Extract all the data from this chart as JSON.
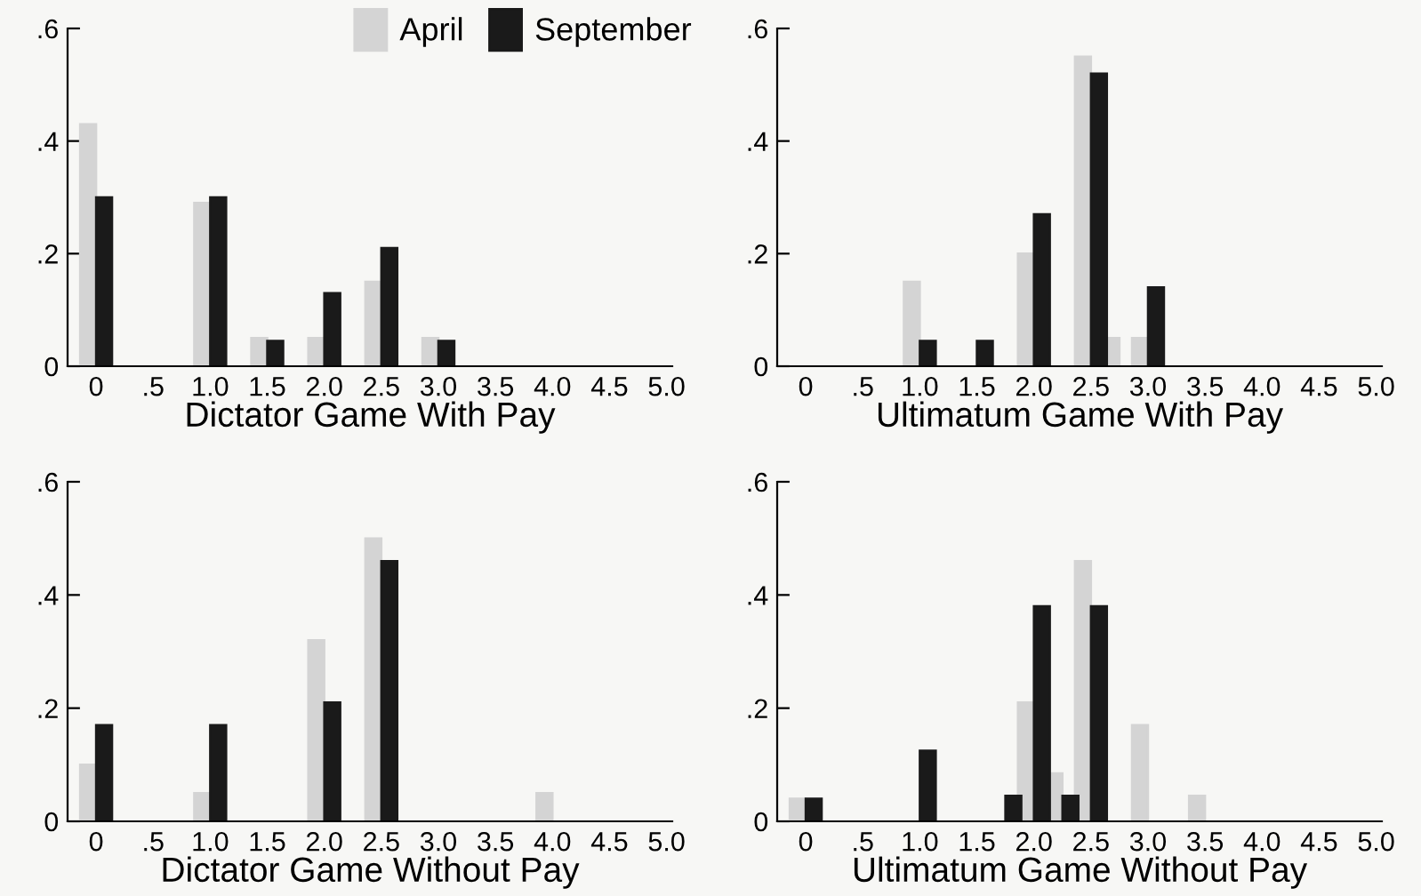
{
  "chart_data": [
    {
      "type": "bar",
      "xlabel": "Dictator Game With Pay",
      "legend": "top right",
      "xlim": [
        -0.25,
        5.05
      ],
      "ylim": [
        0,
        0.6
      ],
      "xticks": [
        0,
        {
          "value": 0.5,
          "label": ".5"
        },
        {
          "value": 1,
          "label": "1.0"
        },
        1.5,
        {
          "value": 2,
          "label": "2.0"
        },
        2.5,
        {
          "value": 3,
          "label": "3.0"
        },
        3.5,
        {
          "value": 4,
          "label": "4.0"
        },
        4.5,
        {
          "value": 5,
          "label": "5.0"
        }
      ],
      "yticks": [
        0,
        {
          "value": 0.2,
          "label": ".2"
        },
        {
          "value": 0.4,
          "label": ".4"
        },
        {
          "value": 0.6,
          "label": ".6"
        }
      ],
      "series": [
        {
          "name": "April",
          "color": "#d4d4d4",
          "x": [
            0,
            1,
            1.5,
            2,
            2.5,
            3
          ],
          "values": [
            0.43,
            0.29,
            0.05,
            0.05,
            0.15,
            0.05
          ]
        },
        {
          "name": "September",
          "color": "#1a1a1a",
          "x": [
            0,
            1,
            1.5,
            2,
            2.5,
            3
          ],
          "values": [
            0.3,
            0.3,
            0.045,
            0.13,
            0.21,
            0.045
          ]
        }
      ]
    },
    {
      "type": "bar",
      "xlabel": "Ultimatum Game With Pay",
      "xlim": [
        -0.25,
        5.05
      ],
      "ylim": [
        0,
        0.6
      ],
      "xticks": [
        0,
        {
          "value": 0.5,
          "label": ".5"
        },
        {
          "value": 1,
          "label": "1.0"
        },
        1.5,
        {
          "value": 2,
          "label": "2.0"
        },
        2.5,
        {
          "value": 3,
          "label": "3.0"
        },
        3.5,
        {
          "value": 4,
          "label": "4.0"
        },
        4.5,
        {
          "value": 5,
          "label": "5.0"
        }
      ],
      "yticks": [
        0,
        {
          "value": 0.2,
          "label": ".2"
        },
        {
          "value": 0.4,
          "label": ".4"
        },
        {
          "value": 0.6,
          "label": ".6"
        }
      ],
      "series": [
        {
          "color": "#d4d4d4",
          "x": [
            1,
            2,
            2.5,
            2.75,
            3
          ],
          "values": [
            0.15,
            0.2,
            0.55,
            0.05,
            0.05
          ]
        },
        {
          "color": "#1a1a1a",
          "x": [
            1,
            1.5,
            2,
            2.5,
            3
          ],
          "values": [
            0.045,
            0.045,
            0.27,
            0.52,
            0.14
          ]
        }
      ]
    },
    {
      "type": "bar",
      "xlabel": "Dictator Game Without Pay",
      "xlim": [
        -0.25,
        5.05
      ],
      "ylim": [
        0,
        0.6
      ],
      "xticks": [
        0,
        {
          "value": 0.5,
          "label": ".5"
        },
        {
          "value": 1,
          "label": "1.0"
        },
        1.5,
        {
          "value": 2,
          "label": "2.0"
        },
        2.5,
        {
          "value": 3,
          "label": "3.0"
        },
        3.5,
        {
          "value": 4,
          "label": "4.0"
        },
        4.5,
        {
          "value": 5,
          "label": "5.0"
        }
      ],
      "yticks": [
        0,
        {
          "value": 0.2,
          "label": ".2"
        },
        {
          "value": 0.4,
          "label": ".4"
        },
        {
          "value": 0.6,
          "label": ".6"
        }
      ],
      "series": [
        {
          "color": "#d4d4d4",
          "x": [
            0,
            1,
            2,
            2.5,
            4
          ],
          "values": [
            0.1,
            0.05,
            0.32,
            0.5,
            0.05
          ]
        },
        {
          "color": "#1a1a1a",
          "x": [
            0,
            1,
            2,
            2.5
          ],
          "values": [
            0.17,
            0.17,
            0.21,
            0.46
          ]
        }
      ]
    },
    {
      "type": "bar",
      "xlabel": "Ultimatum Game Without Pay",
      "xlim": [
        -0.25,
        5.05
      ],
      "ylim": [
        0,
        0.6
      ],
      "xticks": [
        0,
        {
          "value": 0.5,
          "label": ".5"
        },
        {
          "value": 1,
          "label": "1.0"
        },
        1.5,
        {
          "value": 2,
          "label": "2.0"
        },
        2.5,
        {
          "value": 3,
          "label": "3.0"
        },
        3.5,
        {
          "value": 4,
          "label": "4.0"
        },
        4.5,
        {
          "value": 5,
          "label": "5.0"
        }
      ],
      "yticks": [
        0,
        {
          "value": 0.2,
          "label": ".2"
        },
        {
          "value": 0.4,
          "label": ".4"
        },
        {
          "value": 0.6,
          "label": ".6"
        }
      ],
      "series": [
        {
          "color": "#d4d4d4",
          "x": [
            0,
            2,
            2.25,
            2.5,
            3,
            3.5
          ],
          "values": [
            0.04,
            0.21,
            0.085,
            0.46,
            0.17,
            0.045
          ]
        },
        {
          "color": "#1a1a1a",
          "x": [
            0,
            1,
            1.75,
            2,
            2.25,
            2.5
          ],
          "values": [
            0.04,
            0.125,
            0.045,
            0.38,
            0.045,
            0.38
          ]
        }
      ]
    }
  ]
}
